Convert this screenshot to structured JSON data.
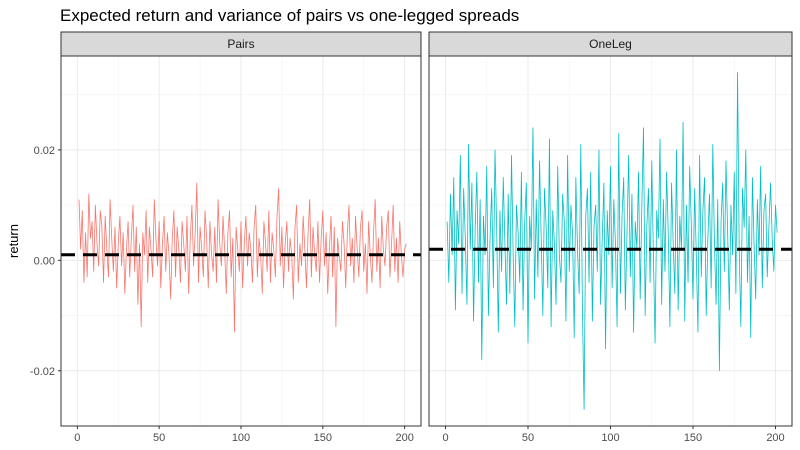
{
  "chart_data": {
    "type": "line",
    "title": "Expected return and variance of pairs vs one-legged spreads",
    "xlabel": "",
    "ylabel": "return",
    "xlim": [
      -10,
      210
    ],
    "ylim": [
      -0.03,
      0.037
    ],
    "x_ticks": [
      0,
      50,
      100,
      150,
      200
    ],
    "x_tick_labels": [
      "0",
      "50",
      "100",
      "150",
      "200"
    ],
    "y_ticks": [
      -0.02,
      0.0,
      0.02
    ],
    "y_tick_labels": [
      "-0.02",
      "0.00",
      "0.02"
    ],
    "grid": true,
    "panels": [
      {
        "name": "Pairs",
        "color": "#F8766D",
        "mean_line": 0.001,
        "x_start": 1,
        "values": [
          0.011,
          0.002,
          0.009,
          -0.004,
          0.005,
          -0.003,
          0.012,
          0.004,
          0.007,
          -0.002,
          0.01,
          0.003,
          -0.001,
          0.009,
          0.006,
          -0.004,
          0.008,
          0.002,
          -0.003,
          0.011,
          0.004,
          -0.002,
          0.006,
          -0.005,
          0.003,
          0.008,
          -0.001,
          0.005,
          -0.006,
          0.002,
          0.007,
          -0.003,
          0.004,
          0.01,
          -0.002,
          0.006,
          -0.008,
          0.003,
          -0.012,
          0.005,
          0.001,
          0.009,
          -0.004,
          0.006,
          0.002,
          -0.003,
          0.011,
          0.004,
          -0.001,
          0.007,
          -0.005,
          0.003,
          0.008,
          -0.002,
          0.005,
          0.001,
          -0.007,
          0.004,
          0.009,
          -0.003,
          0.006,
          0.002,
          -0.004,
          0.007,
          0.003,
          -0.002,
          0.008,
          -0.006,
          0.004,
          0.01,
          -0.001,
          0.005,
          0.014,
          -0.004,
          0.006,
          0.002,
          -0.003,
          0.009,
          0.004,
          -0.005,
          0.007,
          0.001,
          -0.002,
          0.006,
          -0.004,
          0.011,
          0.003,
          -0.001,
          0.008,
          0.002,
          -0.006,
          0.005,
          0.009,
          -0.003,
          0.004,
          -0.013,
          0.006,
          0.002,
          -0.002,
          0.007,
          -0.005,
          0.003,
          0.008,
          -0.001,
          0.005,
          0.002,
          -0.004,
          0.006,
          0.01,
          -0.003,
          0.004,
          0.001,
          -0.006,
          0.007,
          0.003,
          -0.002,
          0.009,
          -0.004,
          0.005,
          0.002,
          -0.003,
          0.008,
          0.013,
          -0.001,
          0.006,
          -0.005,
          0.003,
          0.007,
          -0.002,
          0.004,
          0.001,
          -0.007,
          0.006,
          0.01,
          -0.004,
          0.003,
          -0.001,
          0.008,
          0.002,
          -0.005,
          0.005,
          0.011,
          -0.003,
          0.006,
          0.001,
          -0.002,
          0.007,
          -0.004,
          0.004,
          0.009,
          -0.001,
          0.005,
          -0.006,
          0.002,
          0.008,
          -0.003,
          0.006,
          -0.012,
          0.004,
          0.001,
          -0.002,
          0.007,
          0.003,
          -0.005,
          0.005,
          0.01,
          -0.001,
          0.004,
          -0.004,
          0.008,
          0.002,
          -0.003,
          0.006,
          0.009,
          -0.002,
          0.003,
          -0.006,
          0.007,
          0.001,
          -0.004,
          0.005,
          0.011,
          -0.002,
          0.004,
          -0.005,
          0.008,
          0.002,
          -0.001,
          0.006,
          0.009,
          -0.003,
          0.003,
          0.01,
          -0.002,
          0.004,
          -0.004,
          0.007,
          0.001,
          -0.003,
          0.002,
          0.003
        ]
      },
      {
        "name": "OneLeg",
        "color": "#00BFC4",
        "mean_line": 0.002,
        "x_start": 1,
        "values": [
          0.007,
          -0.004,
          0.012,
          0.001,
          0.015,
          -0.009,
          0.009,
          0.003,
          0.019,
          -0.006,
          0.013,
          0.004,
          -0.008,
          0.021,
          0.002,
          0.014,
          -0.011,
          0.006,
          0.016,
          -0.004,
          0.011,
          -0.018,
          0.008,
          0.001,
          0.017,
          -0.01,
          0.004,
          0.013,
          -0.005,
          0.02,
          0.006,
          -0.013,
          0.009,
          -0.002,
          0.015,
          0.003,
          -0.008,
          0.012,
          -0.006,
          0.019,
          0.001,
          -0.012,
          0.01,
          0.005,
          -0.004,
          0.016,
          -0.009,
          0.007,
          0.014,
          -0.015,
          0.008,
          0.002,
          0.024,
          -0.007,
          0.011,
          -0.003,
          0.018,
          0.004,
          -0.01,
          0.013,
          0.006,
          -0.005,
          0.022,
          -0.012,
          0.009,
          0.003,
          -0.008,
          0.017,
          0.001,
          -0.004,
          0.012,
          0.007,
          -0.011,
          0.019,
          -0.002,
          0.01,
          0.005,
          -0.014,
          0.015,
          0.002,
          -0.006,
          0.021,
          -0.009,
          -0.027,
          0.008,
          0.013,
          -0.004,
          0.016,
          -0.011,
          0.006,
          0.01,
          -0.002,
          0.02,
          -0.008,
          0.004,
          0.014,
          -0.016,
          0.009,
          0.001,
          0.017,
          -0.005,
          0.011,
          0.003,
          -0.012,
          0.023,
          -0.006,
          0.008,
          0.015,
          -0.009,
          0.005,
          0.019,
          -0.003,
          0.012,
          -0.013,
          0.007,
          0.002,
          0.016,
          -0.007,
          0.01,
          0.024,
          -0.01,
          0.006,
          0.013,
          -0.004,
          0.018,
          0.001,
          -0.015,
          0.009,
          0.004,
          0.022,
          -0.008,
          0.011,
          -0.002,
          0.016,
          0.005,
          -0.012,
          0.014,
          0.003,
          -0.006,
          0.02,
          -0.009,
          0.008,
          0.002,
          0.025,
          -0.011,
          0.01,
          -0.004,
          0.017,
          0.006,
          -0.007,
          0.013,
          0.001,
          -0.013,
          0.019,
          -0.003,
          0.009,
          0.015,
          -0.01,
          0.004,
          0.012,
          -0.005,
          0.021,
          0.003,
          -0.008,
          0.011,
          -0.02,
          0.007,
          0.014,
          -0.002,
          0.018,
          0.005,
          -0.009,
          0.01,
          0.001,
          0.016,
          -0.006,
          0.034,
          0.002,
          -0.012,
          0.013,
          0.006,
          0.02,
          -0.004,
          0.008,
          -0.014,
          0.015,
          0.003,
          -0.007,
          0.011,
          0.001,
          0.017,
          -0.005,
          0.009,
          0.012,
          -0.003,
          0.006,
          0.014,
          0.004,
          -0.002,
          0.01,
          0.005
        ]
      }
    ]
  }
}
